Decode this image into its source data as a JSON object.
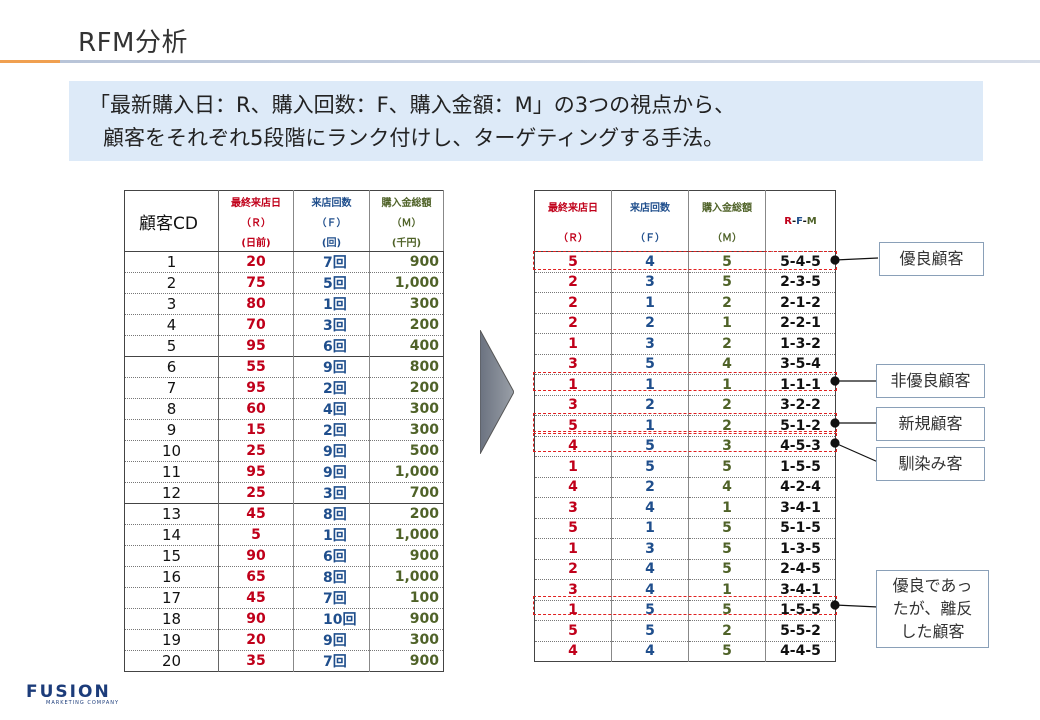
{
  "page": {
    "title": "RFM分析",
    "lead_line1": "「最新購入日：R、購入回数：F、購入金額：M」の3つの視点から、",
    "lead_line2": "顧客をそれぞれ5段階にランク付けし、ターゲティングする手法。"
  },
  "left_table": {
    "header_cd": "顧客CD",
    "col_r": [
      "最終来店日",
      "（Ｒ）",
      "(日前)"
    ],
    "col_f": [
      "来店回数",
      "（Ｆ）",
      "(回)"
    ],
    "col_m": [
      "購入金総額",
      "（Ｍ）",
      "(千円)"
    ],
    "rows": [
      {
        "cd": "1",
        "r": "20",
        "f": "7回",
        "m": "900"
      },
      {
        "cd": "2",
        "r": "75",
        "f": "5回",
        "m": "1,000"
      },
      {
        "cd": "3",
        "r": "80",
        "f": "1回",
        "m": "300"
      },
      {
        "cd": "4",
        "r": "70",
        "f": "3回",
        "m": "200"
      },
      {
        "cd": "5",
        "r": "95",
        "f": "6回",
        "m": "400"
      },
      {
        "cd": "6",
        "r": "55",
        "f": "9回",
        "m": "800"
      },
      {
        "cd": "7",
        "r": "95",
        "f": "2回",
        "m": "200"
      },
      {
        "cd": "8",
        "r": "60",
        "f": "4回",
        "m": "300"
      },
      {
        "cd": "9",
        "r": "15",
        "f": "2回",
        "m": "300"
      },
      {
        "cd": "10",
        "r": "25",
        "f": "9回",
        "m": "500"
      },
      {
        "cd": "11",
        "r": "95",
        "f": "9回",
        "m": "1,000"
      },
      {
        "cd": "12",
        "r": "25",
        "f": "3回",
        "m": "700"
      },
      {
        "cd": "13",
        "r": "45",
        "f": "8回",
        "m": "200"
      },
      {
        "cd": "14",
        "r": "5",
        "f": "1回",
        "m": "1,000"
      },
      {
        "cd": "15",
        "r": "90",
        "f": "6回",
        "m": "900"
      },
      {
        "cd": "16",
        "r": "65",
        "f": "8回",
        "m": "1,000"
      },
      {
        "cd": "17",
        "r": "45",
        "f": "7回",
        "m": "100"
      },
      {
        "cd": "18",
        "r": "90",
        "f": "10回",
        "m": "900"
      },
      {
        "cd": "19",
        "r": "20",
        "f": "9回",
        "m": "300"
      },
      {
        "cd": "20",
        "r": "35",
        "f": "7回",
        "m": "900"
      }
    ]
  },
  "right_table": {
    "col_r": [
      "最終来店日",
      "（Ｒ）"
    ],
    "col_f": [
      "来店回数",
      "（Ｆ）"
    ],
    "col_m": [
      "購入金総額",
      "（Ｍ）"
    ],
    "col_rfm": {
      "r": "R",
      "d1": "-",
      "f": "F",
      "d2": "-",
      "m": "M"
    },
    "rows": [
      {
        "r": "5",
        "f": "4",
        "m": "5",
        "rfm": "5-4-5"
      },
      {
        "r": "2",
        "f": "3",
        "m": "5",
        "rfm": "2-3-5"
      },
      {
        "r": "2",
        "f": "1",
        "m": "2",
        "rfm": "2-1-2"
      },
      {
        "r": "2",
        "f": "2",
        "m": "1",
        "rfm": "2-2-1"
      },
      {
        "r": "1",
        "f": "3",
        "m": "2",
        "rfm": "1-3-2"
      },
      {
        "r": "3",
        "f": "5",
        "m": "4",
        "rfm": "3-5-4"
      },
      {
        "r": "1",
        "f": "1",
        "m": "1",
        "rfm": "1-1-1"
      },
      {
        "r": "3",
        "f": "2",
        "m": "2",
        "rfm": "3-2-2"
      },
      {
        "r": "5",
        "f": "1",
        "m": "2",
        "rfm": "5-1-2"
      },
      {
        "r": "4",
        "f": "5",
        "m": "3",
        "rfm": "4-5-3"
      },
      {
        "r": "1",
        "f": "5",
        "m": "5",
        "rfm": "1-5-5"
      },
      {
        "r": "4",
        "f": "2",
        "m": "4",
        "rfm": "4-2-4"
      },
      {
        "r": "3",
        "f": "4",
        "m": "1",
        "rfm": "3-4-1"
      },
      {
        "r": "5",
        "f": "1",
        "m": "5",
        "rfm": "5-1-5"
      },
      {
        "r": "1",
        "f": "3",
        "m": "5",
        "rfm": "1-3-5"
      },
      {
        "r": "2",
        "f": "4",
        "m": "5",
        "rfm": "2-4-5"
      },
      {
        "r": "3",
        "f": "4",
        "m": "1",
        "rfm": "3-4-1"
      },
      {
        "r": "1",
        "f": "5",
        "m": "5",
        "rfm": "1-5-5"
      },
      {
        "r": "5",
        "f": "5",
        "m": "2",
        "rfm": "5-5-2"
      },
      {
        "r": "4",
        "f": "4",
        "m": "5",
        "rfm": "4-4-5"
      }
    ]
  },
  "callouts": {
    "loyal": "優良顧客",
    "non_loyal": "非優良顧客",
    "new": "新規顧客",
    "familiar": "馴染み客",
    "lapsed_1": "優良であっ",
    "lapsed_2": "たが、離反",
    "lapsed_3": "した顧客"
  },
  "logo": {
    "brand": "FUSION",
    "sub": "MARKETING COMPANY"
  },
  "colors": {
    "r": "#c0001a",
    "f": "#1f4e8c",
    "m": "#4f6228",
    "highlight": "#e02020",
    "lead_bg": "#ddeaf8"
  }
}
